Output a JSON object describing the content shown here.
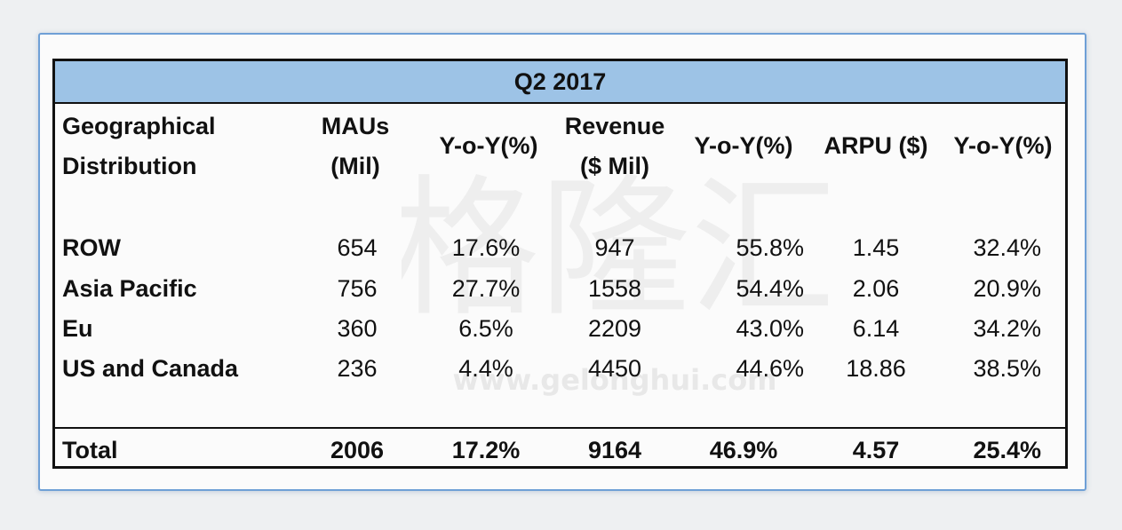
{
  "chart_data": {
    "type": "table",
    "title": "Q2 2017",
    "columns": [
      "Geographical Distribution",
      "MAUs (Mil)",
      "Y-o-Y(%)",
      "Revenue ($ Mil)",
      "Y-o-Y(%)",
      "ARPU ($)",
      "Y-o-Y(%)"
    ],
    "header": {
      "region": [
        "Geographical",
        "Distribution"
      ],
      "maus": [
        "MAUs",
        "(Mil)"
      ],
      "maus_yoy": "Y-o-Y(%)",
      "revenue": [
        "Revenue",
        "($ Mil)"
      ],
      "revenue_yoy": "Y-o-Y(%)",
      "arpu": "ARPU ($)",
      "arpu_yoy": "Y-o-Y(%)"
    },
    "rows": [
      [
        "ROW",
        "654",
        "17.6%",
        "947",
        "55.8%",
        "1.45",
        "32.4%"
      ],
      [
        "Asia Pacific",
        "756",
        "27.7%",
        "1558",
        "54.4%",
        "2.06",
        "20.9%"
      ],
      [
        "Eu",
        "360",
        "6.5%",
        "2209",
        "43.0%",
        "6.14",
        "34.2%"
      ],
      [
        "US and Canada",
        "236",
        "4.4%",
        "4450",
        "44.6%",
        "18.86",
        "38.5%"
      ]
    ],
    "total": [
      "Total",
      "2006",
      "17.2%",
      "9164",
      "46.9%",
      "4.57",
      "25.4%"
    ]
  },
  "colors": {
    "title_band": "#9dc3e6",
    "card_border": "#6fa0d6",
    "text": "#111111"
  },
  "watermark": {
    "text": "格隆汇",
    "url": "www.gelonghui.com"
  }
}
